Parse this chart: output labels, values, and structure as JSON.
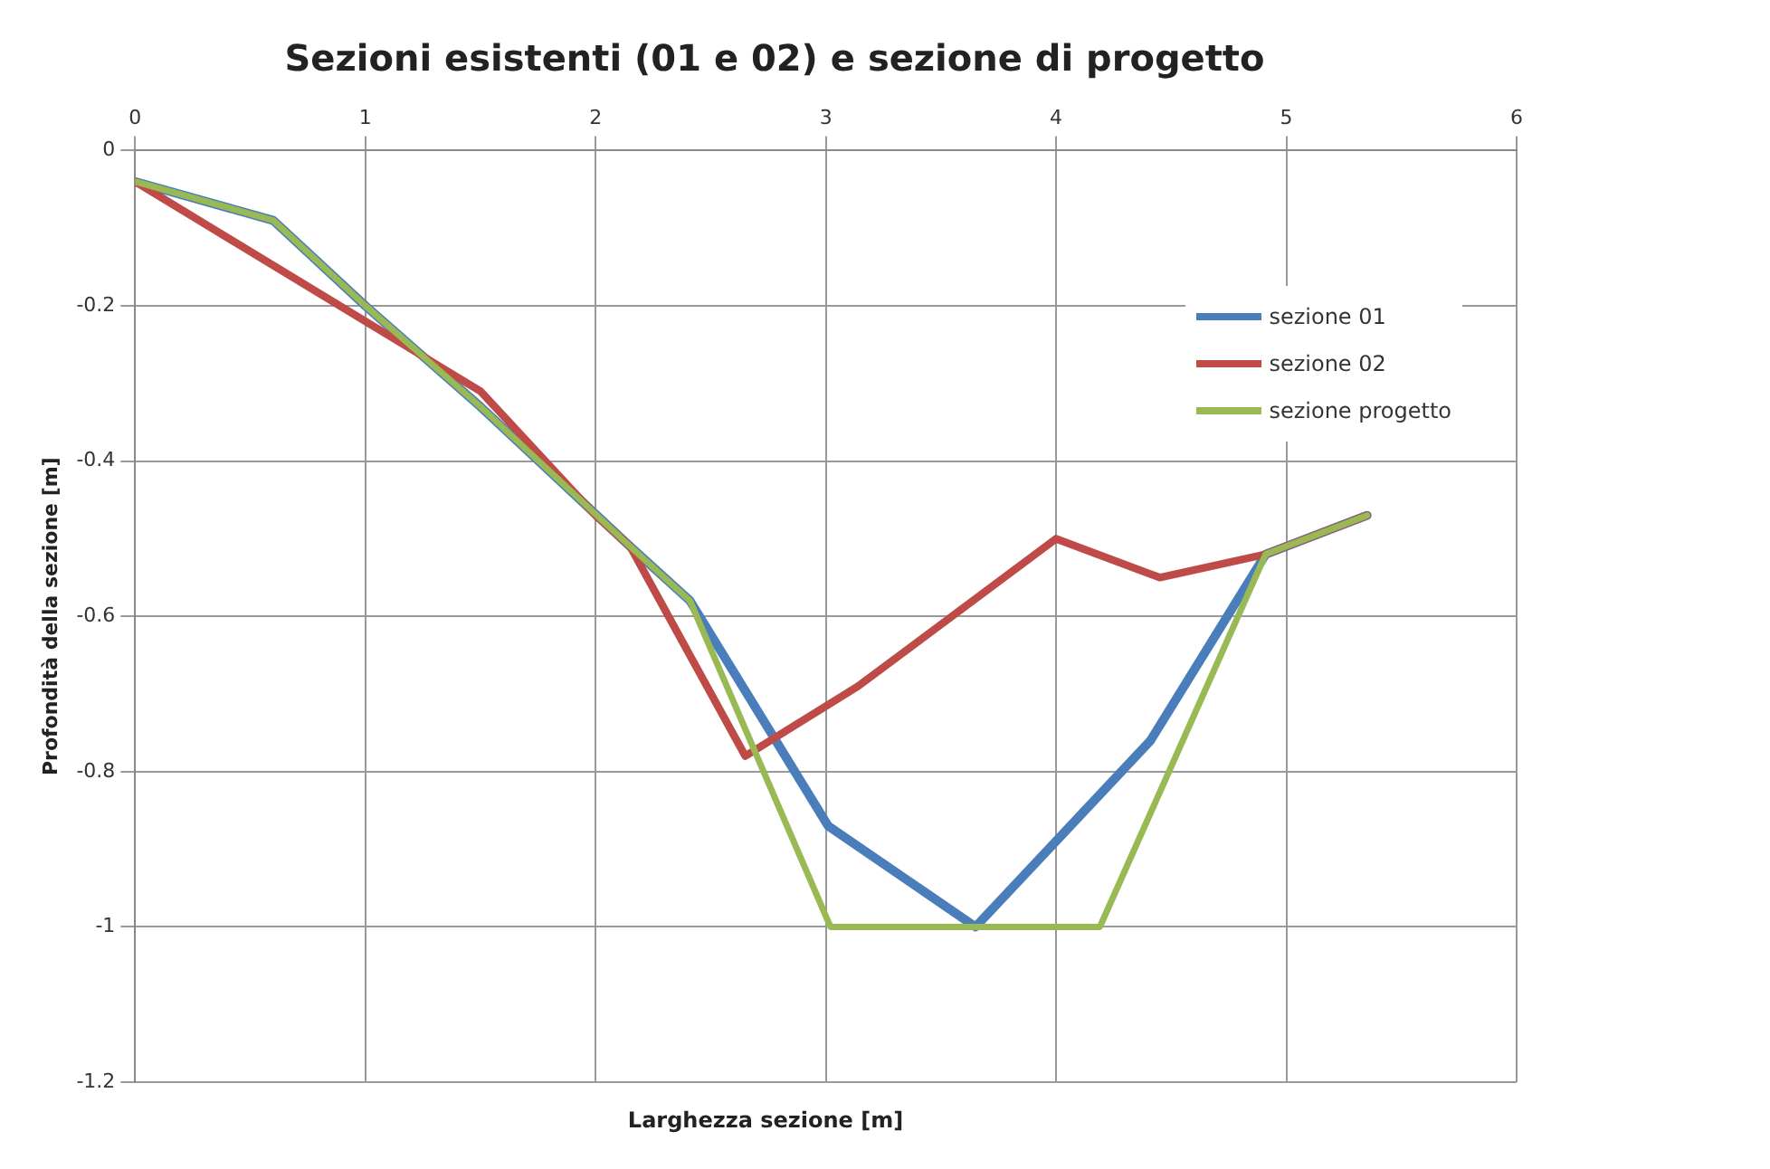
{
  "chart_data": {
    "type": "line",
    "title": "Sezioni esistenti (01 e 02) e sezione di progetto",
    "xlabel": "Larghezza sezione [m]",
    "ylabel": "Profondità della sezione [m]",
    "series": [
      {
        "name": "sezione 01",
        "color": "#4a7ebb",
        "x": [
          0,
          0.6,
          1,
          1.5,
          2.15,
          2.41,
          3.01,
          3.65,
          4.41,
          4.91,
          5.35
        ],
        "values": [
          -0.04,
          -0.09,
          -0.2,
          -0.33,
          -0.51,
          -0.58,
          -0.87,
          -1.0,
          -0.76,
          -0.52,
          -0.47
        ]
      },
      {
        "name": "sezione 02",
        "color": "#be4b48",
        "x": [
          0,
          1,
          1.5,
          2.0,
          2.15,
          2.65,
          3.14,
          4.0,
          4.45,
          4.91,
          5.35
        ],
        "values": [
          -0.04,
          -0.22,
          -0.31,
          -0.47,
          -0.51,
          -0.78,
          -0.69,
          -0.5,
          -0.55,
          -0.52,
          -0.47
        ]
      },
      {
        "name": "sezione progetto",
        "color": "#98b954",
        "x": [
          0,
          0.6,
          1,
          1.5,
          2.15,
          2.41,
          3.02,
          4.19,
          4.91,
          5.35
        ],
        "values": [
          -0.04,
          -0.09,
          -0.2,
          -0.33,
          -0.51,
          -0.58,
          -1.0,
          -1.0,
          -0.52,
          -0.47
        ]
      }
    ],
    "xlim": [
      0,
      6
    ],
    "xticks": [
      0,
      1,
      2,
      3,
      4,
      5,
      6
    ],
    "ylim": [
      -1.2,
      0
    ],
    "yticks": [
      -1.2,
      -1,
      -0.8,
      -0.6,
      -0.4,
      -0.2,
      0
    ],
    "grid": true,
    "legend": "right",
    "marker": "none",
    "line_style": "solid"
  }
}
